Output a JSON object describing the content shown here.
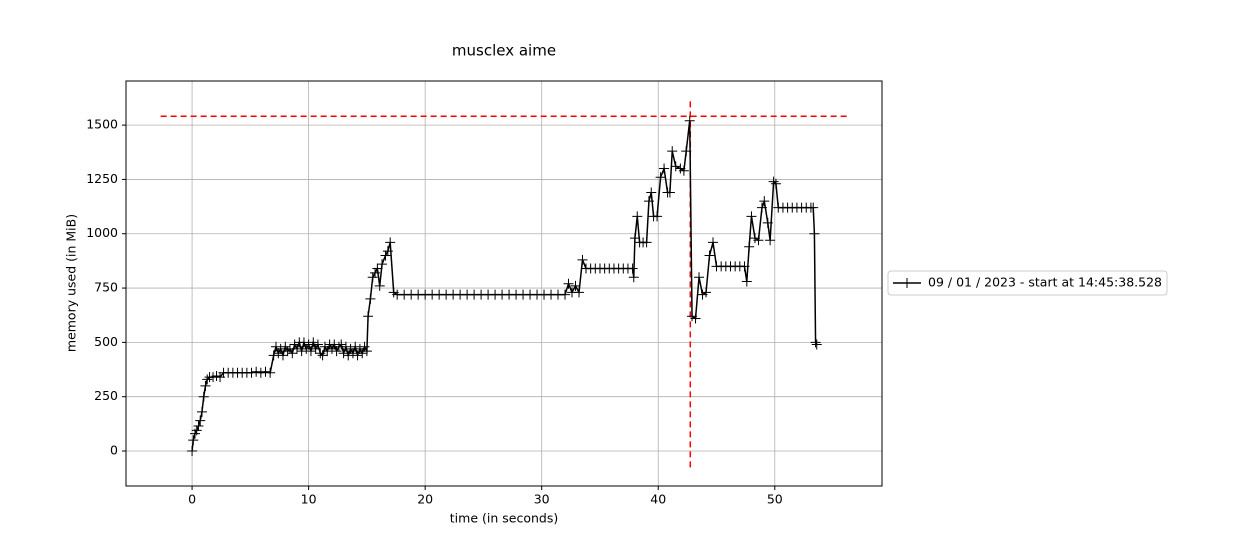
{
  "chart_data": {
    "type": "line",
    "title": "musclex aime",
    "x_label": "time (in seconds)",
    "y_label": "memory used (in MiB)",
    "xlim": [
      -5.67,
      59.2
    ],
    "ylim": [
      -161,
      1703
    ],
    "xticks": [
      0,
      10,
      20,
      30,
      40,
      50
    ],
    "yticks": [
      0,
      250,
      500,
      750,
      1000,
      1250,
      1500
    ],
    "grid": true,
    "legend": "outside right",
    "series": [
      {
        "name": "09 / 01 / 2023 - start at 14:45:38.528",
        "color": "#000000",
        "x": [
          0,
          0.1,
          0.25,
          0.4,
          0.55,
          0.7,
          0.85,
          1.0,
          1.15,
          1.3,
          1.5,
          1.8,
          2.1,
          2.4,
          2.7,
          3.1,
          3.5,
          3.9,
          4.3,
          4.7,
          5.1,
          5.5,
          5.9,
          6.3,
          6.7,
          7.0,
          7.2,
          7.4,
          7.6,
          7.8,
          8.0,
          8.2,
          8.4,
          8.6,
          8.8,
          9.0,
          9.2,
          9.4,
          9.6,
          9.8,
          10.0,
          10.2,
          10.4,
          10.6,
          10.8,
          11.0,
          11.2,
          11.4,
          11.6,
          11.8,
          12.0,
          12.2,
          12.4,
          12.6,
          12.8,
          13.0,
          13.2,
          13.4,
          13.6,
          13.8,
          14.0,
          14.2,
          14.4,
          14.6,
          14.8,
          15.0,
          15.1,
          15.3,
          15.5,
          15.7,
          15.9,
          16.1,
          16.3,
          16.6,
          16.8,
          17.0,
          17.3,
          17.6,
          18.2,
          18.8,
          19.4,
          20.0,
          20.6,
          21.2,
          21.8,
          22.4,
          23.0,
          23.6,
          24.2,
          24.8,
          25.4,
          26.0,
          26.6,
          27.2,
          27.8,
          28.4,
          29.0,
          29.6,
          30.2,
          30.8,
          31.4,
          32.0,
          32.3,
          32.6,
          32.9,
          33.2,
          33.5,
          33.8,
          34.2,
          34.6,
          35.0,
          35.4,
          35.8,
          36.2,
          36.6,
          37.0,
          37.4,
          37.8,
          37.9,
          38.0,
          38.2,
          38.4,
          38.7,
          39.0,
          39.2,
          39.4,
          39.6,
          39.9,
          40.2,
          40.5,
          40.8,
          41.0,
          41.2,
          41.5,
          41.9,
          42.2,
          42.4,
          42.7,
          42.9,
          43.2,
          43.5,
          43.8,
          44.1,
          44.4,
          44.7,
          45.0,
          45.4,
          45.8,
          46.2,
          46.6,
          47.0,
          47.4,
          47.6,
          47.8,
          48.0,
          48.3,
          48.6,
          48.9,
          49.1,
          49.4,
          49.6,
          49.9,
          50.1,
          50.3,
          50.7,
          51.1,
          51.5,
          51.9,
          52.3,
          52.7,
          53.1,
          53.3,
          53.4,
          53.5,
          53.6
        ],
        "values": [
          0,
          50,
          80,
          95,
          115,
          140,
          180,
          250,
          300,
          330,
          340,
          340,
          345,
          340,
          360,
          360,
          360,
          360,
          360,
          360,
          360,
          365,
          360,
          365,
          360,
          440,
          480,
          450,
          470,
          440,
          480,
          460,
          470,
          450,
          490,
          470,
          500,
          460,
          500,
          470,
          490,
          460,
          500,
          470,
          490,
          450,
          440,
          480,
          460,
          490,
          470,
          490,
          460,
          480,
          490,
          450,
          480,
          440,
          470,
          450,
          480,
          440,
          470,
          450,
          480,
          460,
          620,
          700,
          800,
          820,
          840,
          760,
          860,
          900,
          920,
          960,
          730,
          720,
          720,
          720,
          720,
          720,
          720,
          720,
          720,
          720,
          720,
          720,
          720,
          720,
          720,
          720,
          720,
          720,
          720,
          720,
          720,
          720,
          720,
          720,
          720,
          720,
          770,
          730,
          760,
          730,
          880,
          840,
          840,
          840,
          840,
          840,
          840,
          840,
          840,
          840,
          840,
          840,
          800,
          980,
          1080,
          960,
          960,
          960,
          1150,
          1190,
          1080,
          1080,
          1260,
          1300,
          1190,
          1190,
          1380,
          1310,
          1300,
          1290,
          1380,
          1520,
          620,
          610,
          800,
          720,
          730,
          900,
          960,
          850,
          850,
          850,
          850,
          850,
          850,
          850,
          780,
          940,
          1080,
          980,
          970,
          1120,
          1150,
          1050,
          970,
          1240,
          1230,
          1120,
          1120,
          1120,
          1120,
          1120,
          1120,
          1120,
          1120,
          1120,
          1000,
          500,
          490
        ]
      }
    ],
    "hlines": [
      {
        "y": 1541,
        "xmin": -2.7,
        "xmax": 56.3,
        "color": "#ff0000"
      }
    ],
    "vlines": [
      {
        "x": 42.75,
        "ymin": -75,
        "ymax": 1620,
        "color": "#ff0000"
      }
    ]
  }
}
